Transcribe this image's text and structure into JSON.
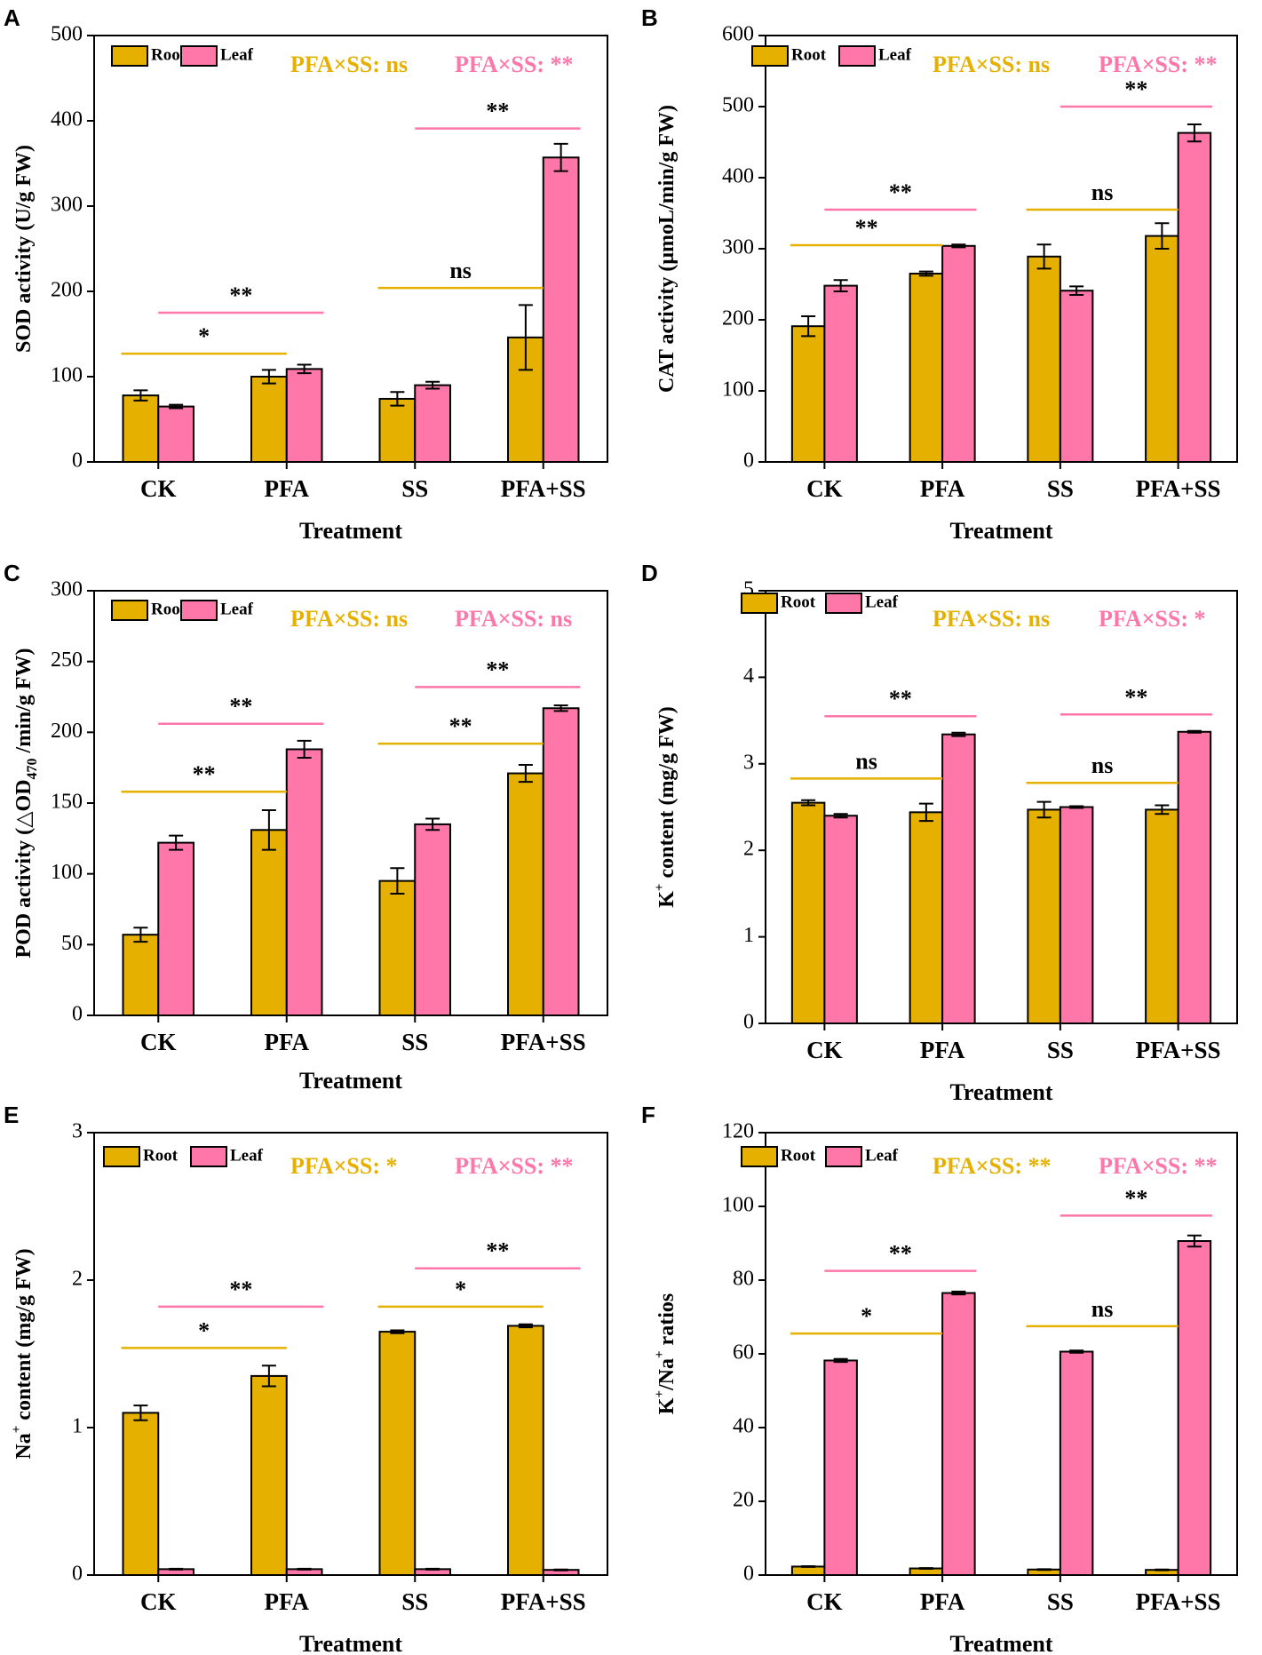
{
  "colors": {
    "root": "#e6b000",
    "leaf": "#ff76a8",
    "axis": "#000000"
  },
  "chart_data": [
    {
      "type": "bar",
      "panel": "A",
      "categories": [
        "CK",
        "PFA",
        "SS",
        "PFA+SS"
      ],
      "series": [
        {
          "name": "Root",
          "values": [
            78,
            100,
            74,
            146
          ],
          "errors": [
            6,
            8,
            8,
            38
          ]
        },
        {
          "name": "Leaf",
          "values": [
            65,
            109,
            90,
            357
          ],
          "errors": [
            2,
            5,
            4,
            16
          ]
        }
      ],
      "xlabel": "Treatment",
      "ylabel": "SOD activity (U/g FW)",
      "ylim": [
        0,
        500
      ],
      "yticks": [
        0,
        100,
        200,
        300,
        400,
        500
      ],
      "annotations": {
        "root": "PFA×SS: ns",
        "leaf": "PFA×SS: **"
      },
      "comparisons": [
        {
          "series": "Root",
          "from": "CK",
          "to": "PFA",
          "y": 127,
          "label": "*"
        },
        {
          "series": "Leaf",
          "from": "CK",
          "to": "PFA",
          "y": 175,
          "label": "**"
        },
        {
          "series": "Root",
          "from": "SS",
          "to": "PFA+SS",
          "y": 204,
          "label": "ns"
        },
        {
          "series": "Leaf",
          "from": "SS",
          "to": "PFA+SS",
          "y": 391,
          "label": "**"
        }
      ]
    },
    {
      "type": "bar",
      "panel": "B",
      "categories": [
        "CK",
        "PFA",
        "SS",
        "PFA+SS"
      ],
      "series": [
        {
          "name": "Root",
          "values": [
            191,
            265,
            289,
            318
          ],
          "errors": [
            14,
            3,
            17,
            18
          ]
        },
        {
          "name": "Leaf",
          "values": [
            248,
            304,
            241,
            463
          ],
          "errors": [
            8,
            2,
            6,
            12
          ]
        }
      ],
      "xlabel": "Treatment",
      "ylabel": "CAT activity (μmoL/min/g FW)",
      "ylim": [
        0,
        600
      ],
      "yticks": [
        0,
        100,
        200,
        300,
        400,
        500,
        600
      ],
      "annotations": {
        "root": "PFA×SS: ns",
        "leaf": "PFA×SS: **"
      },
      "comparisons": [
        {
          "series": "Root",
          "from": "CK",
          "to": "PFA",
          "y": 305,
          "label": "**"
        },
        {
          "series": "Leaf",
          "from": "CK",
          "to": "PFA",
          "y": 355,
          "label": "**"
        },
        {
          "series": "Root",
          "from": "SS",
          "to": "PFA+SS",
          "y": 355,
          "label": "ns"
        },
        {
          "series": "Leaf",
          "from": "SS",
          "to": "PFA+SS",
          "y": 500,
          "label": "**"
        }
      ]
    },
    {
      "type": "bar",
      "panel": "C",
      "categories": [
        "CK",
        "PFA",
        "SS",
        "PFA+SS"
      ],
      "series": [
        {
          "name": "Root",
          "values": [
            57,
            131,
            95,
            171
          ],
          "errors": [
            5,
            14,
            9,
            6
          ]
        },
        {
          "name": "Leaf",
          "values": [
            122,
            188,
            135,
            217
          ],
          "errors": [
            5,
            6,
            4,
            2
          ]
        }
      ],
      "xlabel": "Treatment",
      "ylabel": "POD activity (△OD470 /min/g FW)",
      "ylim": [
        0,
        300
      ],
      "yticks": [
        0,
        50,
        100,
        150,
        200,
        250,
        300
      ],
      "annotations": {
        "root": "PFA×SS: ns",
        "leaf": "PFA×SS: ns"
      },
      "comparisons": [
        {
          "series": "Root",
          "from": "CK",
          "to": "PFA",
          "y": 158,
          "label": "**"
        },
        {
          "series": "Leaf",
          "from": "CK",
          "to": "PFA",
          "y": 206,
          "label": "**"
        },
        {
          "series": "Root",
          "from": "SS",
          "to": "PFA+SS",
          "y": 192,
          "label": "**"
        },
        {
          "series": "Leaf",
          "from": "SS",
          "to": "PFA+SS",
          "y": 232,
          "label": "**"
        }
      ]
    },
    {
      "type": "bar",
      "panel": "D",
      "categories": [
        "CK",
        "PFA",
        "SS",
        "PFA+SS"
      ],
      "series": [
        {
          "name": "Root",
          "values": [
            2.55,
            2.44,
            2.47,
            2.47
          ],
          "errors": [
            0.03,
            0.1,
            0.09,
            0.05
          ]
        },
        {
          "name": "Leaf",
          "values": [
            2.4,
            3.34,
            2.5,
            3.37
          ],
          "errors": [
            0.02,
            0.02,
            0.01,
            0.01
          ]
        }
      ],
      "xlabel": "Treatment",
      "ylabel": "K+ content (mg/g FW)",
      "ylim": [
        0,
        5
      ],
      "yticks": [
        0,
        1,
        2,
        3,
        4,
        5
      ],
      "annotations": {
        "root": "PFA×SS: ns",
        "leaf": "PFA×SS: *"
      },
      "comparisons": [
        {
          "series": "Root",
          "from": "CK",
          "to": "PFA",
          "y": 2.83,
          "label": "ns"
        },
        {
          "series": "Leaf",
          "from": "CK",
          "to": "PFA",
          "y": 3.55,
          "label": "**"
        },
        {
          "series": "Root",
          "from": "SS",
          "to": "PFA+SS",
          "y": 2.78,
          "label": "ns"
        },
        {
          "series": "Leaf",
          "from": "SS",
          "to": "PFA+SS",
          "y": 3.57,
          "label": "**"
        }
      ]
    },
    {
      "type": "bar",
      "panel": "E",
      "categories": [
        "CK",
        "PFA",
        "SS",
        "PFA+SS"
      ],
      "series": [
        {
          "name": "Root",
          "values": [
            1.1,
            1.35,
            1.65,
            1.69
          ],
          "errors": [
            0.05,
            0.07,
            0.01,
            0.01
          ]
        },
        {
          "name": "Leaf",
          "values": [
            0.04,
            0.04,
            0.04,
            0.035
          ],
          "errors": [
            0.003,
            0.003,
            0.003,
            0.003
          ]
        }
      ],
      "xlabel": "Treatment",
      "ylabel": "Na+ content (mg/g FW)",
      "ylim": [
        0,
        3
      ],
      "yticks": [
        0,
        1,
        2,
        3
      ],
      "annotations": {
        "root": "PFA×SS: *",
        "leaf": "PFA×SS: **"
      },
      "comparisons": [
        {
          "series": "Root",
          "from": "CK",
          "to": "PFA",
          "y": 1.54,
          "label": "*"
        },
        {
          "series": "Leaf",
          "from": "CK",
          "to": "PFA",
          "y": 1.82,
          "label": "**"
        },
        {
          "series": "Root",
          "from": "SS",
          "to": "PFA+SS",
          "y": 1.82,
          "label": "*"
        },
        {
          "series": "Leaf",
          "from": "SS",
          "to": "PFA+SS",
          "y": 2.08,
          "label": "**"
        }
      ]
    },
    {
      "type": "bar",
      "panel": "F",
      "categories": [
        "CK",
        "PFA",
        "SS",
        "PFA+SS"
      ],
      "series": [
        {
          "name": "Root",
          "values": [
            2.3,
            1.8,
            1.5,
            1.4
          ],
          "errors": [
            0.1,
            0.1,
            0.1,
            0.1
          ]
        },
        {
          "name": "Leaf",
          "values": [
            58.2,
            76.5,
            60.6,
            90.6
          ],
          "errors": [
            0.4,
            0.4,
            0.3,
            1.5
          ]
        }
      ],
      "xlabel": "Treatment",
      "ylabel": "K+/Na+ ratios",
      "ylim": [
        0,
        120
      ],
      "yticks": [
        0,
        20,
        40,
        60,
        80,
        100,
        120
      ],
      "annotations": {
        "root": "PFA×SS: **",
        "leaf": "PFA×SS: **"
      },
      "comparisons": [
        {
          "series": "Root",
          "from": "CK",
          "to": "PFA",
          "y": 65.5,
          "label": "*"
        },
        {
          "series": "Leaf",
          "from": "CK",
          "to": "PFA",
          "y": 82.5,
          "label": "**"
        },
        {
          "series": "Root",
          "from": "SS",
          "to": "PFA+SS",
          "y": 67.5,
          "label": "ns"
        },
        {
          "series": "Leaf",
          "from": "SS",
          "to": "PFA+SS",
          "y": 97.5,
          "label": "**"
        }
      ]
    }
  ]
}
